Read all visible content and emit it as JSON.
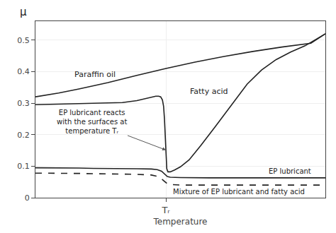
{
  "chart_data": {
    "type": "line",
    "xlabel": "Temperature",
    "ylabel": "μ",
    "xlim": [
      0,
      10
    ],
    "ylim": [
      0,
      0.56
    ],
    "xticks": [
      {
        "value": 4.5,
        "label": "Tᵣ"
      }
    ],
    "yticks": [
      0,
      0.1,
      0.2,
      0.3,
      0.4,
      0.5
    ],
    "grid": true,
    "series": [
      {
        "name": "Paraffin oil",
        "color": "#222222",
        "line_style": "solid",
        "x": [
          0,
          0.3,
          0.8,
          1.5,
          2.5,
          3.5,
          4.5,
          5.5,
          6.5,
          7.5,
          8.5,
          9.5,
          10
        ],
        "values": [
          0.32,
          0.324,
          0.332,
          0.345,
          0.365,
          0.388,
          0.41,
          0.43,
          0.448,
          0.464,
          0.478,
          0.49,
          0.52
        ]
      },
      {
        "name": "Fatty acid",
        "color": "#222222",
        "line_style": "solid",
        "x": [
          0,
          0.5,
          1.0,
          1.5,
          2.0,
          2.5,
          3.0,
          3.5,
          4.0,
          4.15,
          4.25,
          4.32,
          4.38,
          4.42,
          4.45,
          4.48,
          4.5,
          4.53,
          4.57,
          4.65,
          4.8,
          5.0,
          5.3,
          5.7,
          6.2,
          6.8,
          7.3,
          7.8,
          8.3,
          8.8,
          9.3,
          10.0
        ],
        "values": [
          0.295,
          0.296,
          0.297,
          0.298,
          0.299,
          0.3,
          0.302,
          0.308,
          0.318,
          0.322,
          0.322,
          0.32,
          0.31,
          0.29,
          0.25,
          0.18,
          0.12,
          0.092,
          0.082,
          0.082,
          0.088,
          0.098,
          0.12,
          0.165,
          0.225,
          0.3,
          0.36,
          0.405,
          0.438,
          0.462,
          0.482,
          0.52
        ]
      },
      {
        "name": "EP lubricant",
        "color": "#222222",
        "line_style": "solid",
        "x": [
          0,
          0.5,
          1.0,
          1.5,
          2.0,
          2.5,
          3.0,
          3.5,
          4.0,
          4.2,
          4.35,
          4.45,
          4.5,
          4.55,
          4.65,
          5.0,
          6.0,
          7.0,
          8.0,
          9.0,
          10.0
        ],
        "values": [
          0.095,
          0.095,
          0.094,
          0.094,
          0.093,
          0.093,
          0.092,
          0.092,
          0.091,
          0.089,
          0.084,
          0.076,
          0.07,
          0.067,
          0.065,
          0.064,
          0.063,
          0.063,
          0.063,
          0.063,
          0.063
        ]
      },
      {
        "name": "Mixture of EP lubricant and fatty acid",
        "color": "#222222",
        "line_style": "dashed",
        "x": [
          0,
          0.5,
          1.0,
          1.5,
          2.0,
          2.5,
          3.0,
          3.5,
          4.0,
          4.2,
          4.35,
          4.45,
          4.5,
          4.55,
          4.65,
          5.0,
          6.0,
          7.0,
          8.0,
          9.0,
          10.0
        ],
        "values": [
          0.078,
          0.078,
          0.077,
          0.077,
          0.076,
          0.076,
          0.075,
          0.074,
          0.072,
          0.068,
          0.06,
          0.052,
          0.047,
          0.044,
          0.042,
          0.04,
          0.04,
          0.04,
          0.04,
          0.04,
          0.04
        ]
      }
    ],
    "annotations": [
      {
        "text": "EP lubricant reacts\nwith the surfaces at\ntemperature Tᵣ"
      }
    ]
  }
}
